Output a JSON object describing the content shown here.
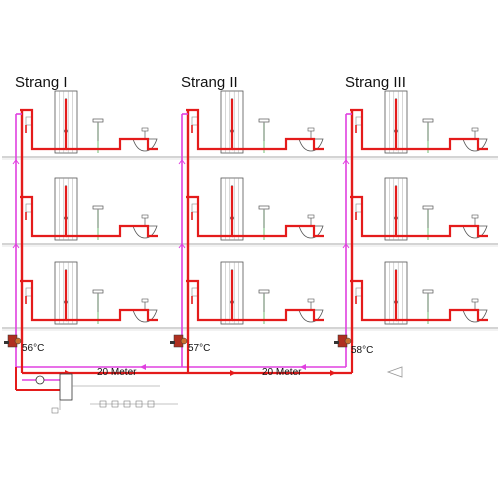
{
  "strangs": [
    {
      "title": "Strang I",
      "temperature": "56°C"
    },
    {
      "title": "Strang II",
      "temperature": "57°C"
    },
    {
      "title": "Strang III",
      "temperature": "58°C"
    }
  ],
  "distances": [
    "20 Meter",
    "20 Meter"
  ],
  "floors": 3,
  "colors": {
    "hot_water_pipe": "#e41b1b",
    "circulation_pipe": "#e040e0",
    "cold_water_pipe": "#4caf50",
    "fixture_outline": "#555555",
    "floor_line": "#bbbbbb",
    "valve": "#b03020"
  },
  "icons": [
    "shower-icon",
    "washbasin-icon",
    "toilet-icon",
    "circulation-valve-icon",
    "pump-icon",
    "water-heater-icon"
  ]
}
